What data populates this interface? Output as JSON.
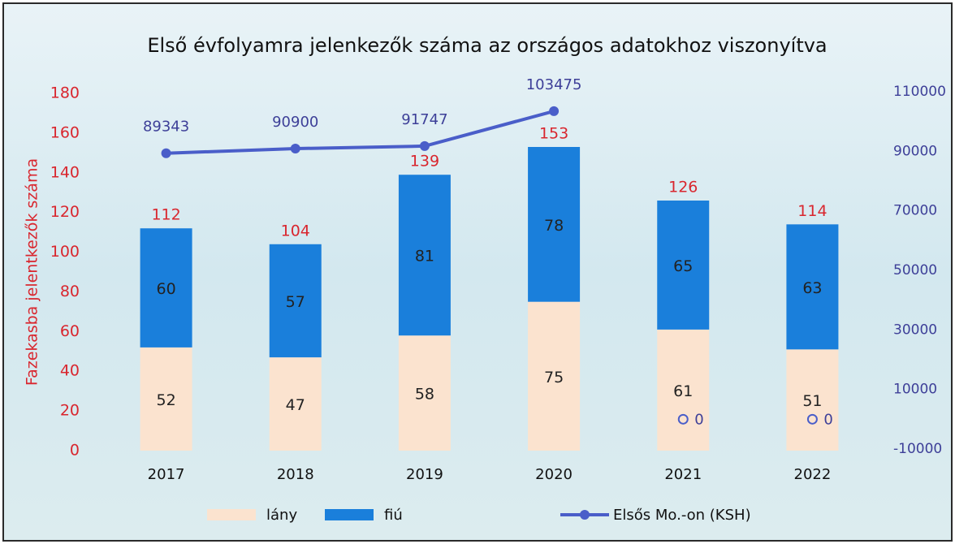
{
  "chart_data": {
    "type": "bar",
    "title": "Első évfolyamra jelenkezők száma az országos adatokhoz viszonyítva",
    "y_label": "Fazekasba jelentkezők száma",
    "categories": [
      "2017",
      "2018",
      "2019",
      "2020",
      "2021",
      "2022"
    ],
    "series": [
      {
        "name": "lány",
        "color": "#fbe3cf",
        "values": [
          52,
          47,
          58,
          75,
          61,
          51
        ]
      },
      {
        "name": "fiú",
        "color": "#1a7fdb",
        "values": [
          60,
          57,
          81,
          78,
          65,
          63
        ]
      },
      {
        "name": "Elsős Mo.-on (KSH)",
        "type": "line",
        "axis": "y2",
        "color": "#4a5ec9",
        "values": [
          89343,
          90900,
          91747,
          103475,
          0,
          0
        ]
      }
    ],
    "totals": [
      112,
      104,
      139,
      153,
      126,
      114
    ],
    "ylim": [
      0,
      180
    ],
    "yticks": [
      0,
      20,
      40,
      60,
      80,
      100,
      120,
      140,
      160,
      180
    ],
    "y2lim": [
      -10000,
      110000
    ],
    "y2ticks": [
      -10000,
      10000,
      30000,
      50000,
      70000,
      90000,
      110000
    ]
  }
}
